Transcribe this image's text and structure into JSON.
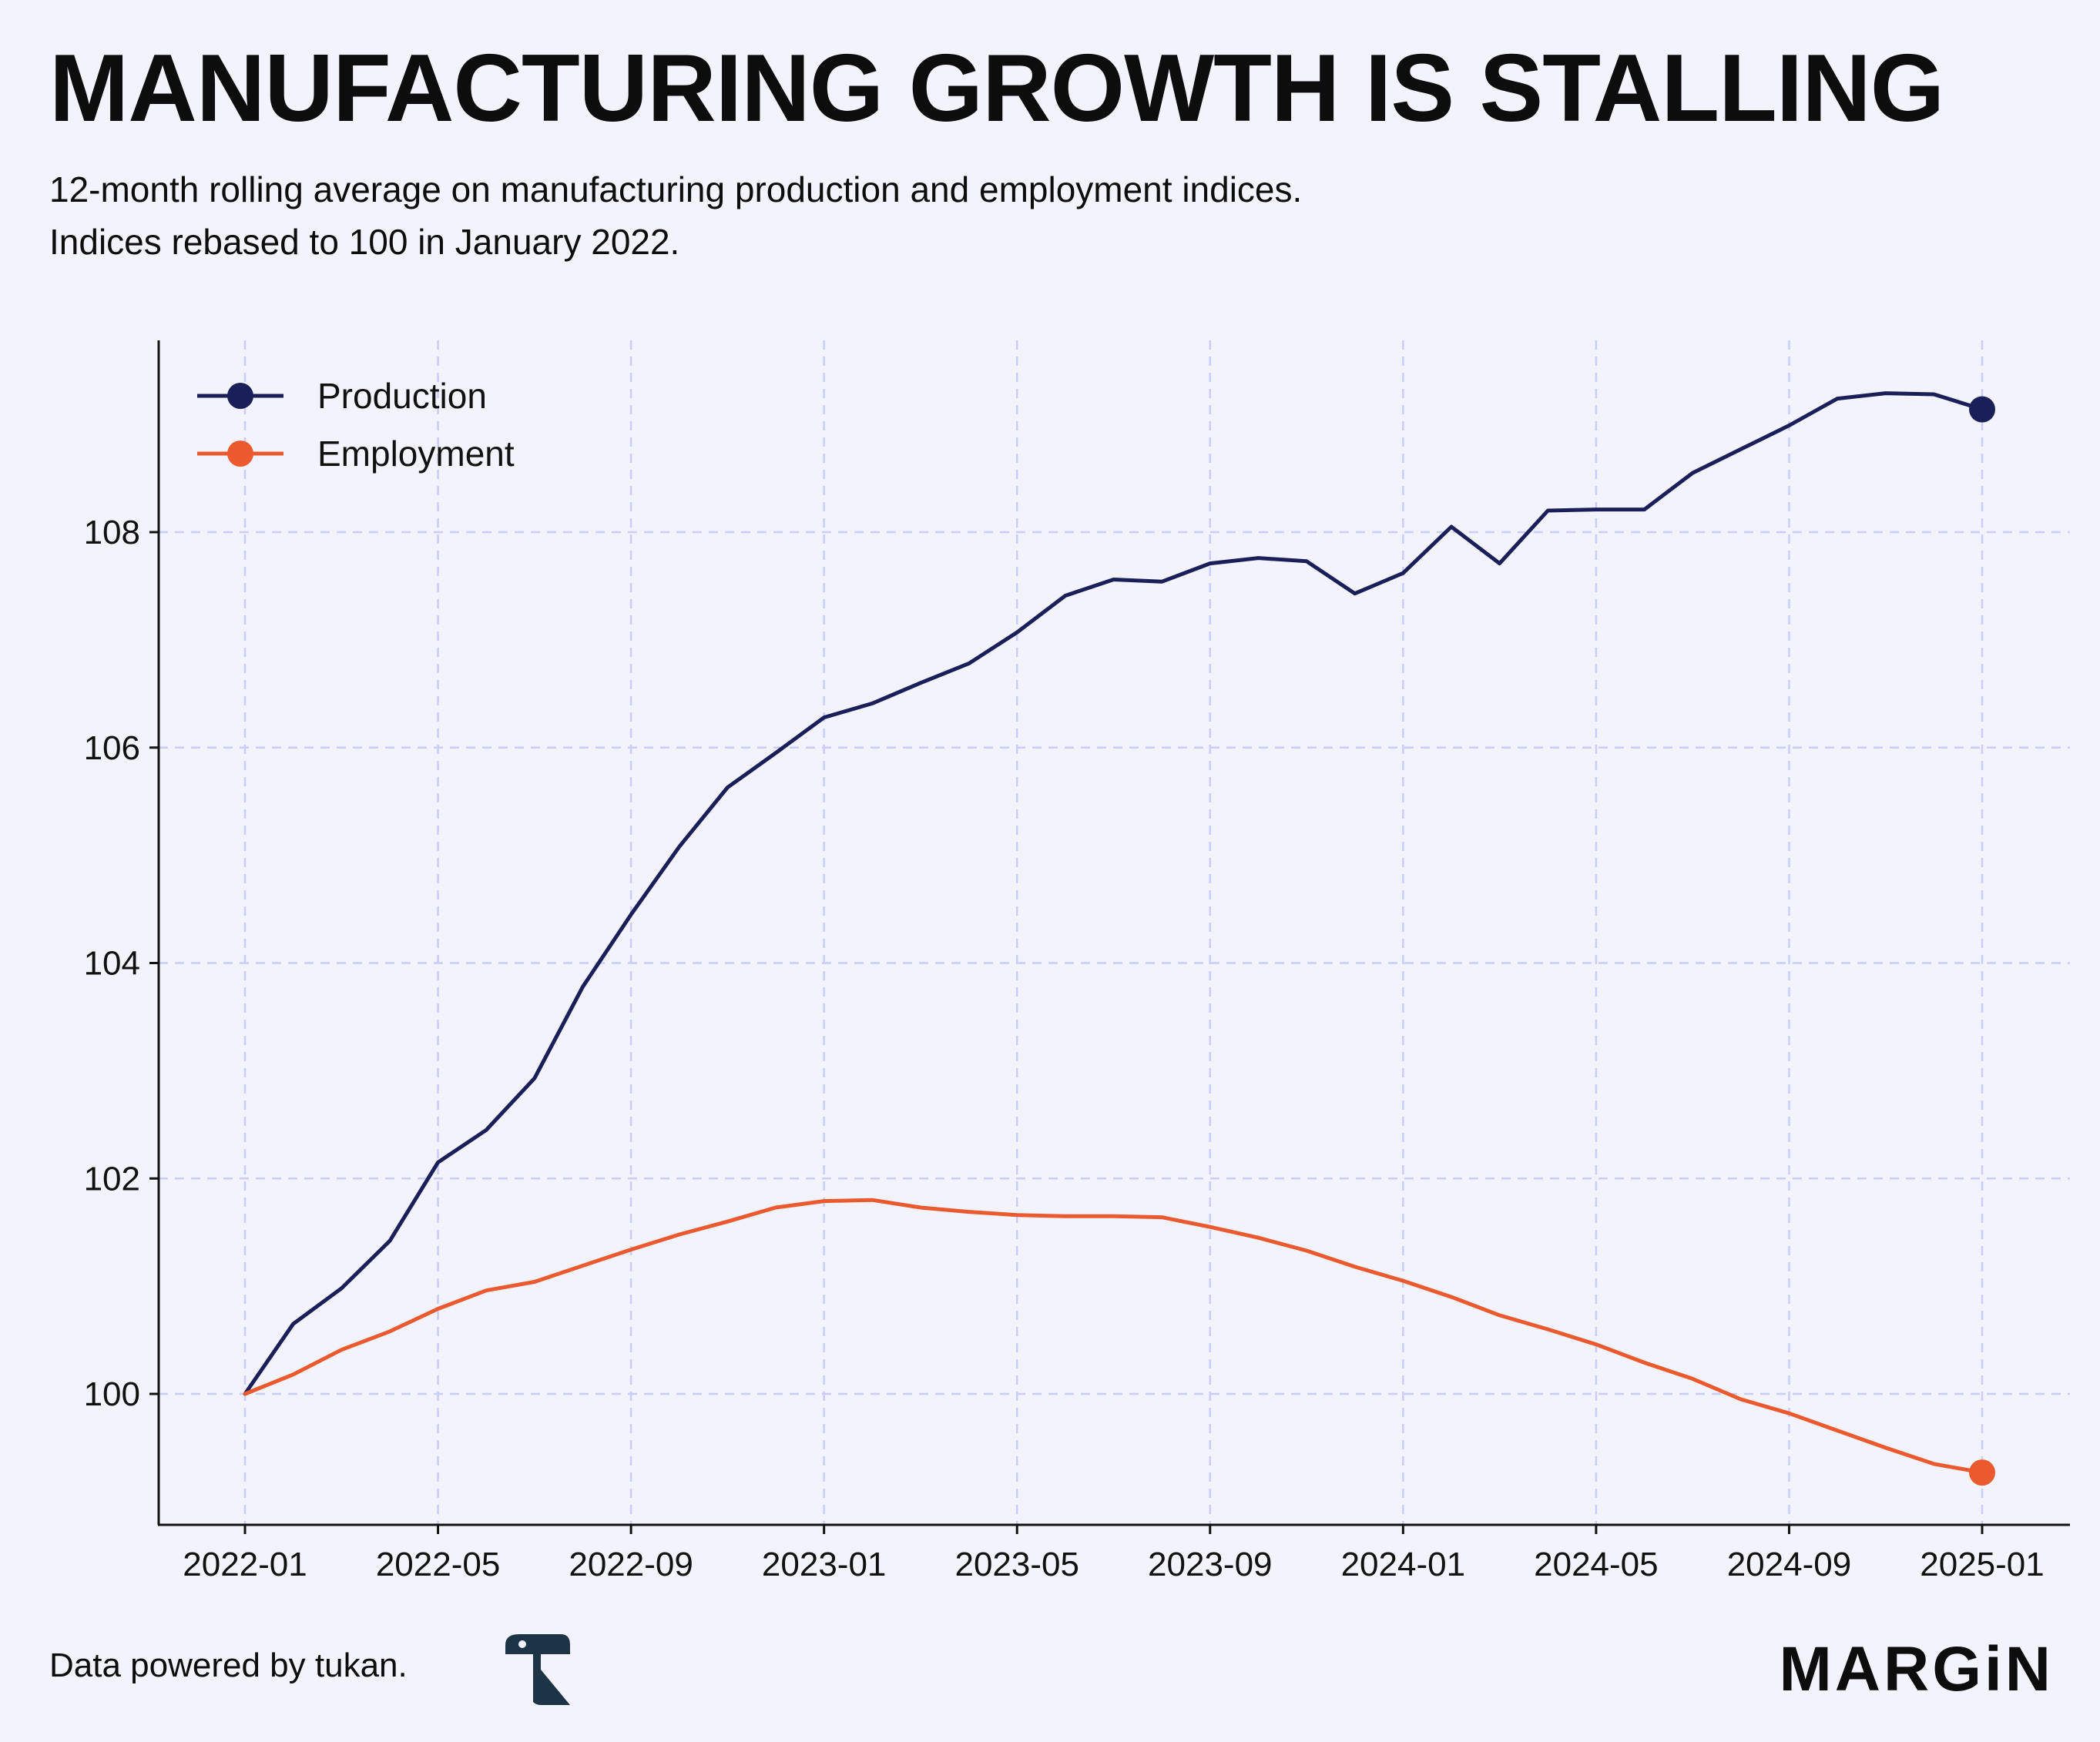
{
  "header": {
    "title": "MANUFACTURING GROWTH IS STALLING",
    "subtitle_line1": "12-month rolling average on manufacturing production and employment indices.",
    "subtitle_line2": "Indices rebased to 100 in January 2022."
  },
  "footer": {
    "source_text": "Data powered by tukan.",
    "brand": "MARGiN"
  },
  "colors": {
    "background": "#f3f3fd",
    "production": "#1a1f5a",
    "employment": "#ea5a2e",
    "grid": "#c9cdf7",
    "axis": "#111111"
  },
  "chart_data": {
    "type": "line",
    "x": [
      "2022-01",
      "2022-02",
      "2022-03",
      "2022-04",
      "2022-05",
      "2022-06",
      "2022-07",
      "2022-08",
      "2022-09",
      "2022-10",
      "2022-11",
      "2022-12",
      "2023-01",
      "2023-02",
      "2023-03",
      "2023-04",
      "2023-05",
      "2023-06",
      "2023-07",
      "2023-08",
      "2023-09",
      "2023-10",
      "2023-11",
      "2023-12",
      "2024-01",
      "2024-02",
      "2024-03",
      "2024-04",
      "2024-05",
      "2024-06",
      "2024-07",
      "2024-08",
      "2024-09",
      "2024-10",
      "2024-11",
      "2024-12",
      "2025-01"
    ],
    "x_ticks": [
      "2022-01",
      "2022-05",
      "2022-09",
      "2023-01",
      "2023-05",
      "2023-09",
      "2024-01",
      "2024-05",
      "2024-09",
      "2025-01"
    ],
    "y_ticks": [
      100,
      102,
      104,
      106,
      108
    ],
    "ylim": [
      98.8,
      109.8
    ],
    "grid": true,
    "legend": "top-left",
    "series": [
      {
        "name": "Production",
        "color": "#1a1f5a",
        "end_marker": true,
        "values": [
          100.0,
          100.65,
          100.98,
          101.42,
          102.15,
          102.45,
          102.93,
          103.78,
          104.45,
          105.08,
          105.63,
          105.95,
          106.28,
          106.41,
          106.6,
          106.78,
          107.07,
          107.41,
          107.56,
          107.54,
          107.71,
          107.76,
          107.73,
          107.43,
          107.62,
          108.05,
          107.71,
          108.2,
          108.21,
          108.21,
          108.55,
          108.77,
          108.99,
          109.24,
          109.29,
          109.28,
          109.14
        ]
      },
      {
        "name": "Employment",
        "color": "#ea5a2e",
        "end_marker": true,
        "values": [
          100.0,
          100.18,
          100.41,
          100.58,
          100.79,
          100.96,
          101.04,
          101.19,
          101.34,
          101.48,
          101.6,
          101.73,
          101.79,
          101.8,
          101.73,
          101.69,
          101.66,
          101.65,
          101.65,
          101.64,
          101.55,
          101.45,
          101.33,
          101.18,
          101.05,
          100.9,
          100.73,
          100.6,
          100.46,
          100.29,
          100.14,
          99.95,
          99.82,
          99.66,
          99.5,
          99.35,
          99.27
        ]
      }
    ]
  }
}
